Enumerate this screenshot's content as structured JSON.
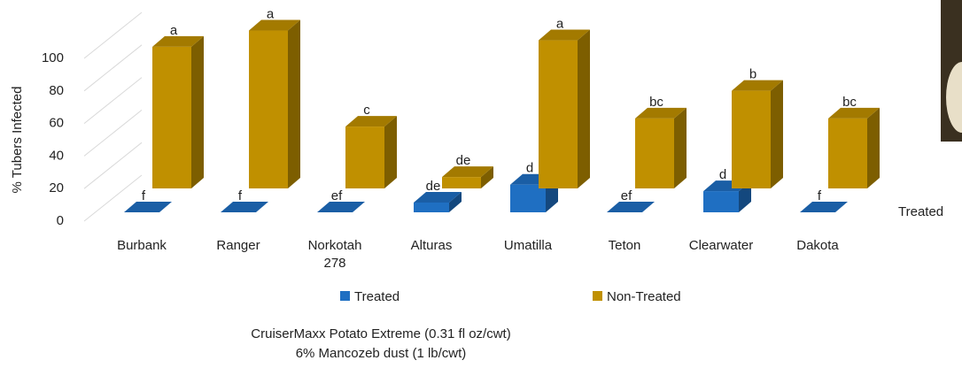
{
  "chart_data": {
    "type": "bar3d",
    "y_label": "% Tubers Infected",
    "categories": [
      "Burbank",
      "Ranger",
      "Norkotah 278",
      "Alturas",
      "Umatilla",
      "Teton",
      "Clearwater",
      "Dakota"
    ],
    "series": [
      {
        "name": "Treated",
        "color": "#1f6fc2",
        "values": [
          0,
          0,
          0,
          6,
          17,
          0,
          13,
          0
        ],
        "letters": [
          "f",
          "f",
          "ef",
          "de",
          "d",
          "ef",
          "d",
          "f"
        ]
      },
      {
        "name": "Non-Treated",
        "color": "#c09000",
        "values": [
          87,
          97,
          38,
          7,
          91,
          43,
          60,
          43
        ],
        "letters": [
          "a",
          "a",
          "c",
          "de",
          "a",
          "bc",
          "b",
          "bc"
        ]
      }
    ],
    "ylim": [
      0,
      100
    ],
    "yticks": [
      0,
      20,
      40,
      60,
      80,
      100
    ],
    "grid": true,
    "footnote": [
      "CruiserMaxx Potato Extreme (0.31 fl oz/cwt)",
      "6% Mancozeb dust (1 lb/cwt)"
    ]
  }
}
